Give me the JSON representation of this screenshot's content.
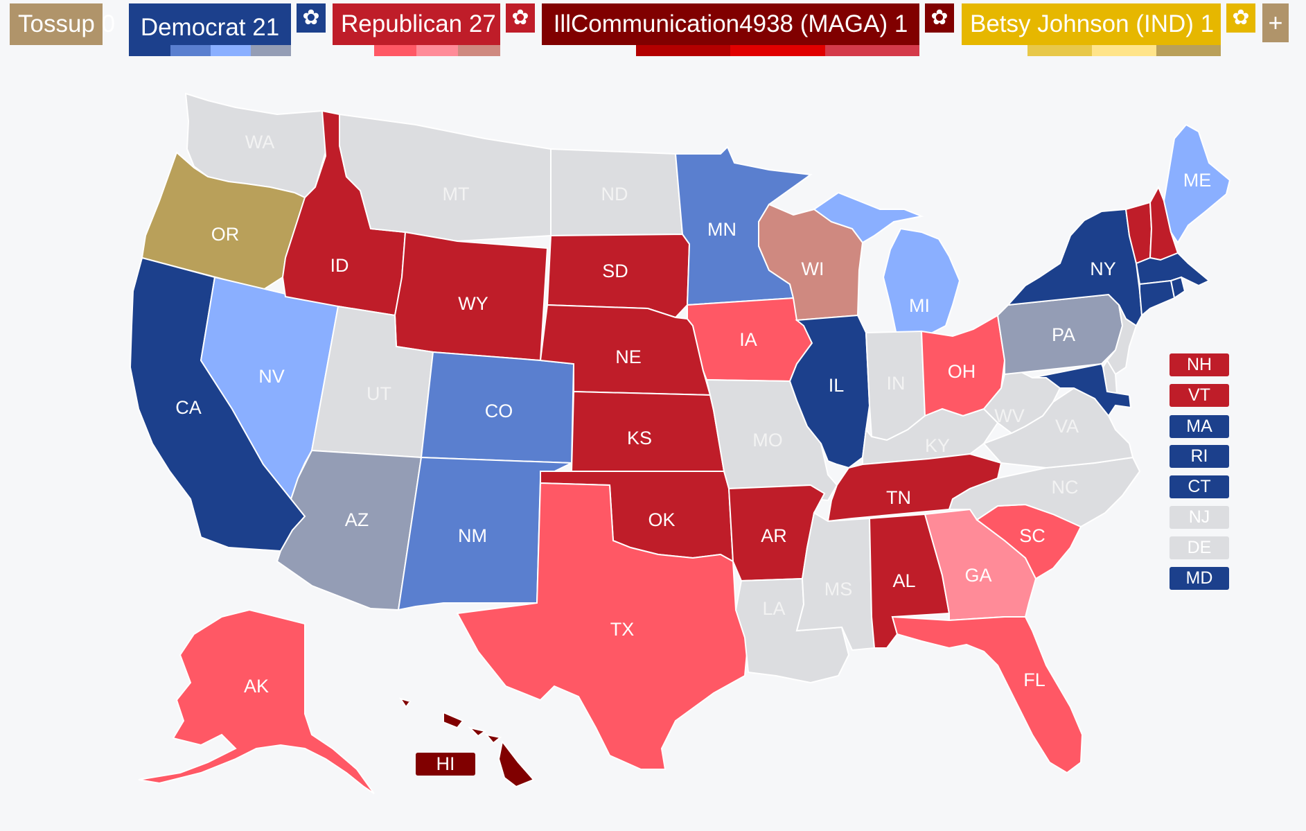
{
  "parties": [
    {
      "key": "tossup",
      "label": "Tossup 0",
      "color": "#b0946a",
      "shades": []
    },
    {
      "key": "dem",
      "label": "Democrat 21",
      "color": "#1c408c",
      "shades": [
        "#5a7fcf",
        "#8aafff",
        "#949db5"
      ]
    },
    {
      "key": "rep",
      "label": "Republican 27",
      "color": "#bf1d29",
      "shades": [
        "#ff5865",
        "#ff8b98",
        "#cf8980"
      ]
    },
    {
      "key": "maga",
      "label": "IllCommunication4938 (MAGA) 1",
      "color": "#800000",
      "shades": [
        "#b30000",
        "#e00000",
        "#d43a4a"
      ]
    },
    {
      "key": "ind",
      "label": "Betsy Johnson (IND) 1",
      "color": "#e6b700",
      "shades": [
        "#e8c84a",
        "#ffe48a",
        "#b9a05a"
      ]
    }
  ],
  "icons": {
    "gear": "gear-icon",
    "plus": "plus-icon"
  },
  "plus_label": "+",
  "gear_glyph": "✿",
  "colors": {
    "gray": "#dcdde0",
    "dem_solid": "#1c408c",
    "dem_likely": "#5a7fcf",
    "dem_lean": "#8aafff",
    "dem_tilt": "#949db5",
    "rep_solid": "#bf1d29",
    "rep_likely": "#ff5865",
    "rep_lean": "#ff8b98",
    "rep_tilt": "#cf8980",
    "maga": "#800000",
    "ind_tilt": "#b9a05a"
  },
  "states": {
    "WA": {
      "label": "WA",
      "rating": "gray"
    },
    "OR": {
      "label": "OR",
      "rating": "ind_tilt"
    },
    "CA": {
      "label": "CA",
      "rating": "dem_solid"
    },
    "NV": {
      "label": "NV",
      "rating": "dem_lean"
    },
    "ID": {
      "label": "ID",
      "rating": "rep_solid"
    },
    "MT": {
      "label": "MT",
      "rating": "gray"
    },
    "WY": {
      "label": "WY",
      "rating": "rep_solid"
    },
    "UT": {
      "label": "UT",
      "rating": "gray"
    },
    "AZ": {
      "label": "AZ",
      "rating": "dem_tilt"
    },
    "CO": {
      "label": "CO",
      "rating": "dem_likely"
    },
    "NM": {
      "label": "NM",
      "rating": "dem_likely"
    },
    "ND": {
      "label": "ND",
      "rating": "gray"
    },
    "SD": {
      "label": "SD",
      "rating": "rep_solid"
    },
    "NE": {
      "label": "NE",
      "rating": "rep_solid"
    },
    "KS": {
      "label": "KS",
      "rating": "rep_solid"
    },
    "OK": {
      "label": "OK",
      "rating": "rep_solid"
    },
    "TX": {
      "label": "TX",
      "rating": "rep_likely"
    },
    "MN": {
      "label": "MN",
      "rating": "dem_likely"
    },
    "IA": {
      "label": "IA",
      "rating": "rep_likely"
    },
    "MO": {
      "label": "MO",
      "rating": "gray"
    },
    "AR": {
      "label": "AR",
      "rating": "rep_solid"
    },
    "LA": {
      "label": "LA",
      "rating": "gray"
    },
    "WI": {
      "label": "WI",
      "rating": "rep_tilt"
    },
    "IL": {
      "label": "IL",
      "rating": "dem_solid"
    },
    "MI": {
      "label": "MI",
      "rating": "dem_lean"
    },
    "IN": {
      "label": "IN",
      "rating": "gray"
    },
    "OH": {
      "label": "OH",
      "rating": "rep_likely"
    },
    "KY": {
      "label": "KY",
      "rating": "gray"
    },
    "TN": {
      "label": "TN",
      "rating": "rep_solid"
    },
    "MS": {
      "label": "MS",
      "rating": "gray"
    },
    "AL": {
      "label": "AL",
      "rating": "rep_solid"
    },
    "GA": {
      "label": "GA",
      "rating": "rep_lean"
    },
    "FL": {
      "label": "FL",
      "rating": "rep_likely"
    },
    "SC": {
      "label": "SC",
      "rating": "rep_likely"
    },
    "NC": {
      "label": "NC",
      "rating": "gray"
    },
    "VA": {
      "label": "VA",
      "rating": "gray"
    },
    "WV": {
      "label": "WV",
      "rating": "gray"
    },
    "PA": {
      "label": "PA",
      "rating": "dem_tilt"
    },
    "NY": {
      "label": "NY",
      "rating": "dem_solid"
    },
    "VT": {
      "label": "VT",
      "rating": "rep_solid"
    },
    "NH": {
      "label": "NH",
      "rating": "rep_solid"
    },
    "ME": {
      "label": "ME",
      "rating": "dem_lean"
    },
    "MA": {
      "label": "MA",
      "rating": "dem_solid"
    },
    "RI": {
      "label": "RI",
      "rating": "dem_solid"
    },
    "CT": {
      "label": "CT",
      "rating": "dem_solid"
    },
    "NJ": {
      "label": "NJ",
      "rating": "gray"
    },
    "DE": {
      "label": "DE",
      "rating": "gray"
    },
    "MD": {
      "label": "MD",
      "rating": "dem_solid"
    },
    "AK": {
      "label": "AK",
      "rating": "rep_likely"
    },
    "HI": {
      "label": "HI",
      "rating": "maga"
    }
  },
  "side_boxes": [
    {
      "label": "NH",
      "rating": "rep_solid"
    },
    {
      "label": "VT",
      "rating": "rep_solid"
    },
    {
      "label": "MA",
      "rating": "dem_solid"
    },
    {
      "label": "RI",
      "rating": "dem_solid"
    },
    {
      "label": "CT",
      "rating": "dem_solid"
    },
    {
      "label": "NJ",
      "rating": "gray"
    },
    {
      "label": "DE",
      "rating": "gray"
    },
    {
      "label": "MD",
      "rating": "dem_solid"
    }
  ]
}
